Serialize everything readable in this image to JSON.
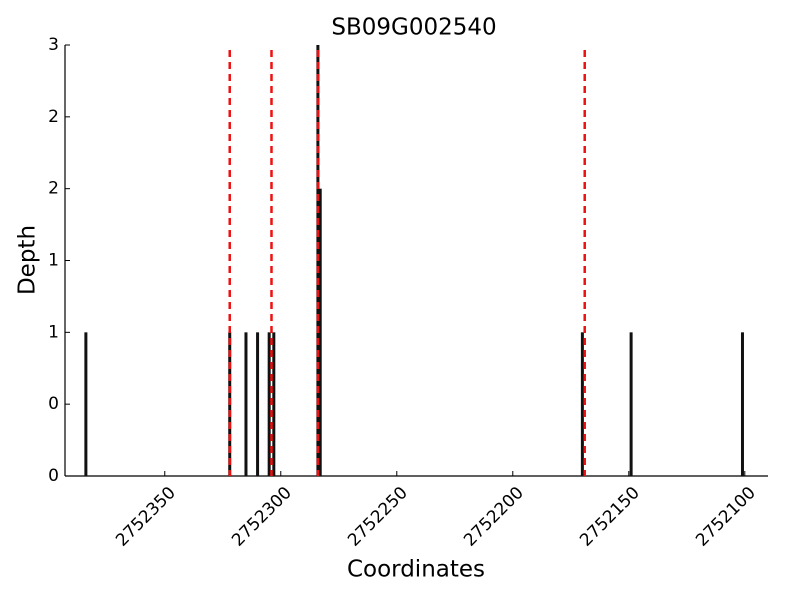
{
  "chart_data": {
    "type": "bar",
    "title": "SB09G002540",
    "xlabel": "Coordinates",
    "ylabel": "Depth",
    "x": [
      2752384,
      2752322,
      2752315,
      2752310,
      2752305,
      2752303,
      2752284,
      2752283,
      2752170,
      2752149,
      2752101
    ],
    "values": [
      1,
      1,
      1,
      1,
      1,
      1,
      3,
      2,
      1,
      1,
      1
    ],
    "color": "#111111",
    "vlines": {
      "x": [
        2752322,
        2752304,
        2752284,
        2752169
      ],
      "color": "#ee1111"
    },
    "xlim": [
      2752393,
      2752090
    ],
    "xticks": [
      2752350,
      2752300,
      2752250,
      2752200,
      2752150,
      2752100
    ],
    "ylim": [
      0,
      3
    ],
    "yticks": [
      0,
      {
        "value": 0.5,
        "label": "0"
      },
      1,
      {
        "value": 1.5,
        "label": "1"
      },
      2,
      {
        "value": 2.5,
        "label": "2"
      },
      3
    ]
  }
}
